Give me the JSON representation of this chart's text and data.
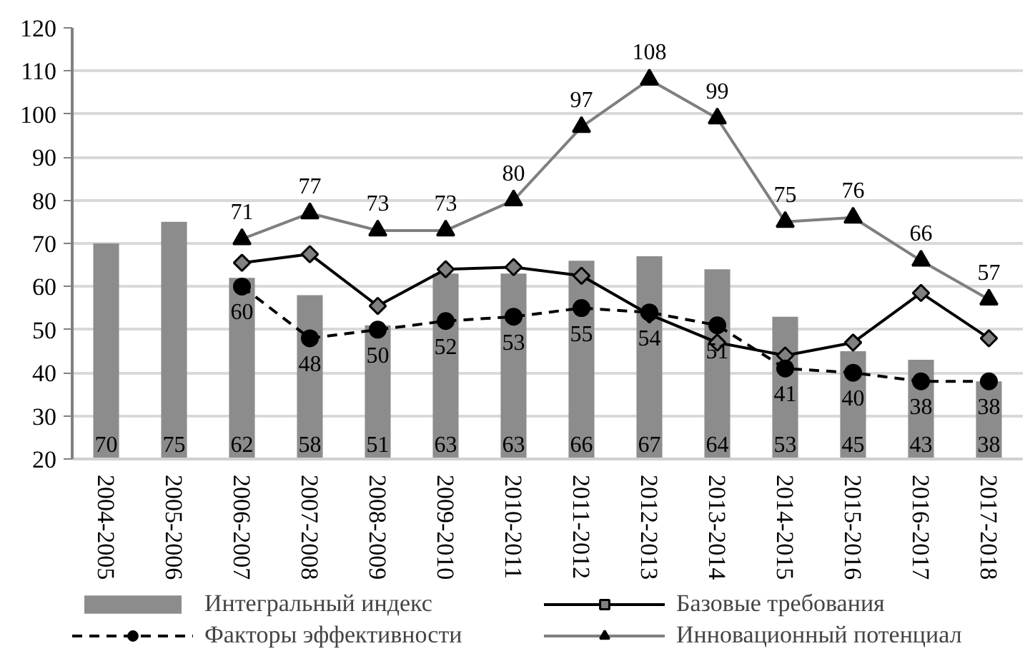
{
  "chart_data": {
    "type": "bar",
    "categories": [
      "2004-2005",
      "2005-2006",
      "2006-2007",
      "2007-2008",
      "2008-2009",
      "2009-2010",
      "2010-2011",
      "2011-2012",
      "2012-2013",
      "2013-2014",
      "2014-2015",
      "2015-2016",
      "2016-2017",
      "2017-2018"
    ],
    "ylim": [
      20,
      120
    ],
    "yticks": [
      20,
      30,
      40,
      50,
      60,
      70,
      80,
      90,
      100,
      110,
      120
    ],
    "grid": "y",
    "legend": "bottom",
    "series": [
      {
        "name": "Интегральный индекс",
        "color": "#8c8c8c",
        "values": [
          70,
          75,
          62,
          58,
          51,
          63,
          63,
          66,
          67,
          64,
          53,
          45,
          43,
          38
        ],
        "value_labels": [
          "70",
          "75",
          "62",
          "58",
          "51",
          "63",
          "63",
          "66",
          "67",
          "64",
          "53",
          "45",
          "43",
          "38"
        ]
      },
      {
        "name": "Базовые требования",
        "type": "line",
        "color": "#000000",
        "marker": "diamond",
        "line_style": "solid",
        "values": [
          null,
          null,
          65.5,
          67.5,
          55.5,
          64,
          64.5,
          62.5,
          53.5,
          47,
          44,
          47,
          58.5,
          48
        ]
      },
      {
        "name": "Факторы эффективности",
        "type": "line",
        "color": "#000000",
        "marker": "circle",
        "line_style": "dashed",
        "values": [
          null,
          null,
          60,
          48,
          50,
          52,
          53,
          55,
          54,
          51,
          41,
          40,
          38,
          38
        ],
        "value_labels": [
          null,
          null,
          "60",
          "48",
          "50",
          "52",
          "53",
          "55",
          "54",
          "51",
          "41",
          "40",
          "38",
          "38"
        ]
      },
      {
        "name": "Инновационный потенциал",
        "type": "line",
        "color": "#7f7f7f",
        "marker": "triangle",
        "line_style": "solid",
        "values": [
          null,
          null,
          71,
          77,
          73,
          73,
          80,
          97,
          108,
          99,
          75,
          76,
          66,
          57
        ],
        "value_labels": [
          null,
          null,
          "71",
          "77",
          "73",
          "73",
          "80",
          "97",
          "108",
          "99",
          "75",
          "76",
          "66",
          "57"
        ]
      }
    ]
  }
}
